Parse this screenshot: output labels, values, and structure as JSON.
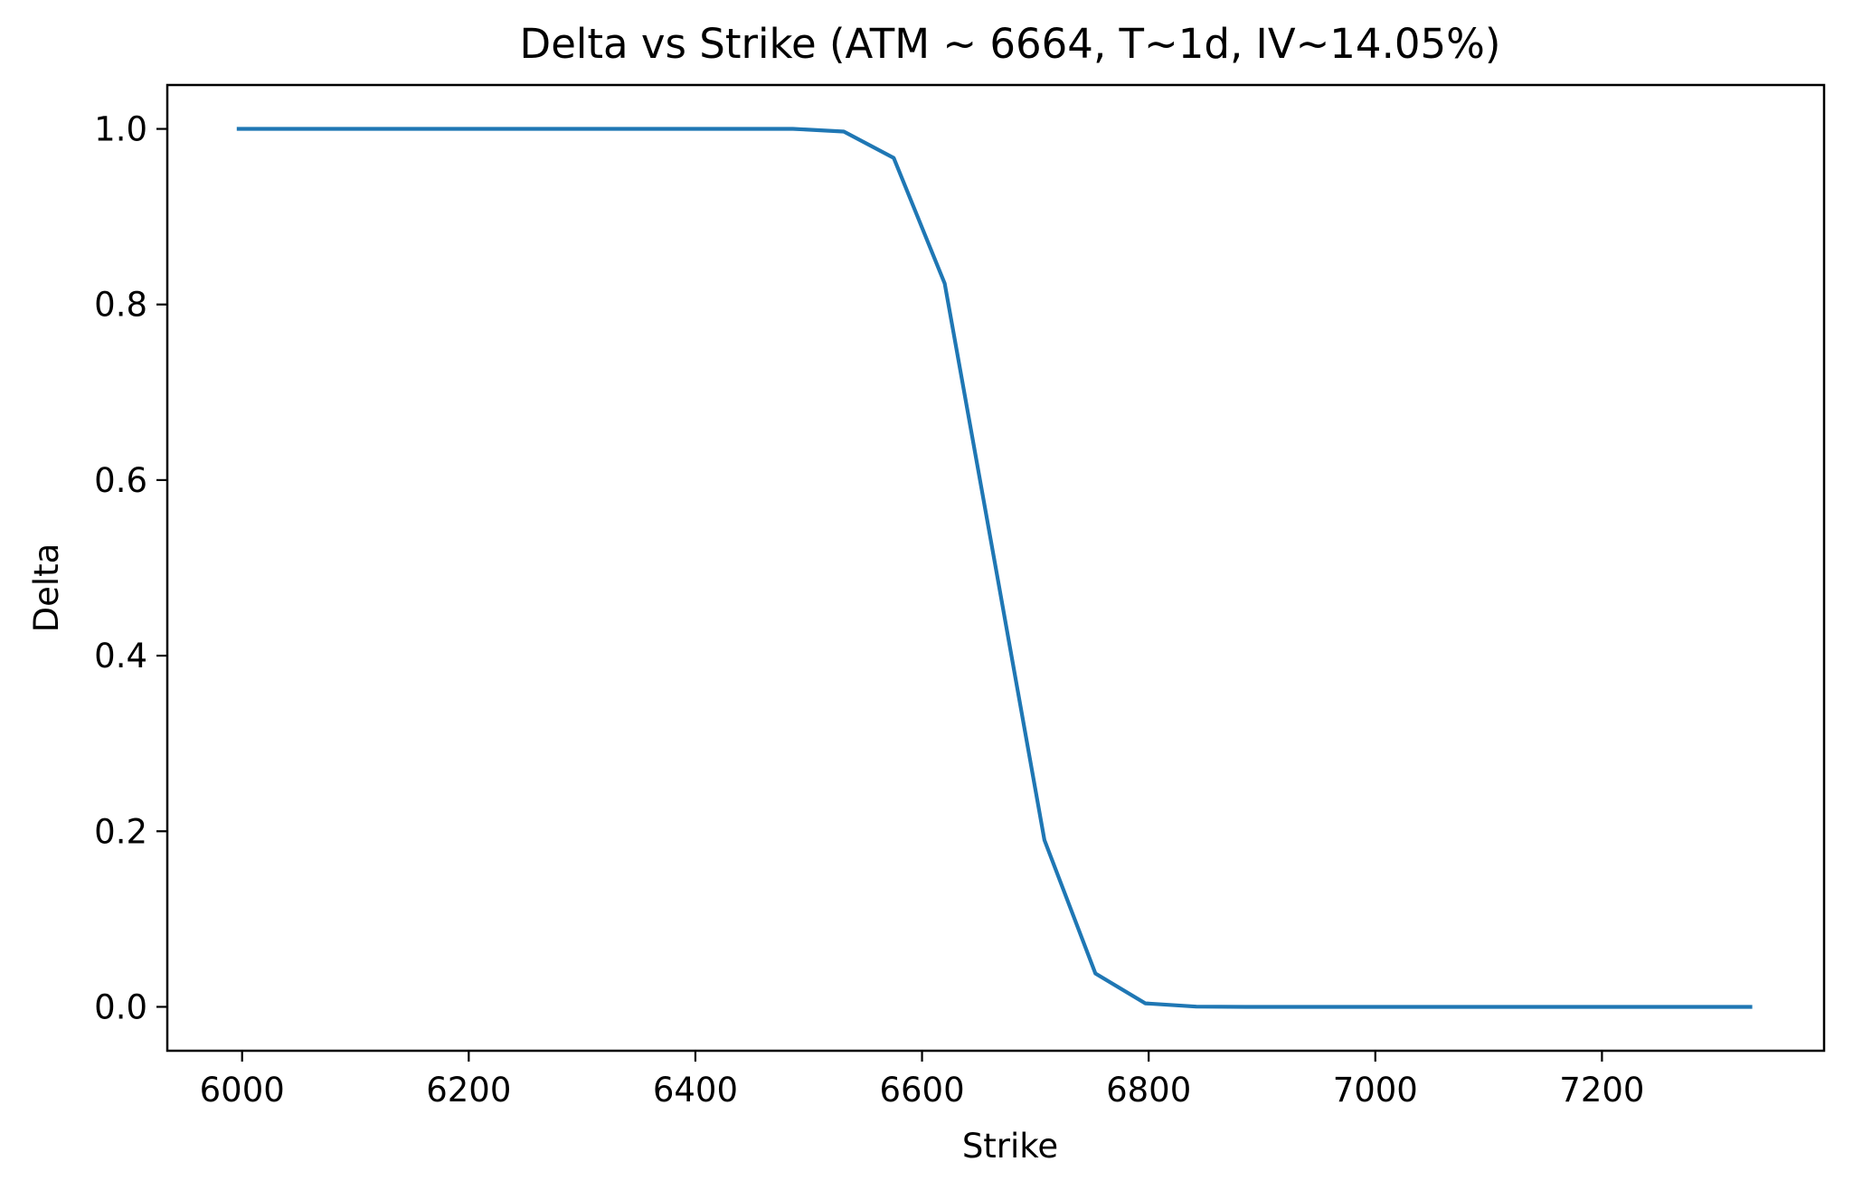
{
  "chart_data": {
    "type": "line",
    "title": "Delta vs Strike (ATM ~ 6664, T~1d, IV~14.05%)",
    "xlabel": "Strike",
    "ylabel": "Delta",
    "xlim": [
      5934,
      7396
    ],
    "ylim": [
      -0.05,
      1.05
    ],
    "xticks": [
      6000,
      6200,
      6400,
      6600,
      6800,
      7000,
      7200
    ],
    "yticks": [
      0.0,
      0.2,
      0.4,
      0.6,
      0.8,
      1.0
    ],
    "xtick_labels": [
      "6000",
      "6200",
      "6400",
      "6600",
      "6800",
      "7000",
      "7200"
    ],
    "ytick_labels": [
      "0.0",
      "0.2",
      "0.4",
      "0.6",
      "0.8",
      "1.0"
    ],
    "grid": false,
    "legend": null,
    "series": [
      {
        "color": "#1f77b4",
        "x": [
          5997,
          6042,
          6086,
          6131,
          6175,
          6220,
          6264,
          6308,
          6353,
          6397,
          6442,
          6486,
          6531,
          6575,
          6620,
          6664,
          6708,
          6753,
          6797,
          6842,
          6886,
          6931,
          6975,
          7020,
          7064,
          7108,
          7153,
          7197,
          7242,
          7286,
          7331
        ],
        "y": [
          1.0,
          1.0,
          1.0,
          1.0,
          1.0,
          1.0,
          1.0,
          1.0,
          1.0,
          1.0,
          1.0,
          1.0,
          0.997,
          0.967,
          0.824,
          0.508,
          0.19,
          0.038,
          0.004,
          0.0003,
          0.0,
          0.0,
          0.0,
          0.0,
          0.0,
          0.0,
          0.0,
          0.0,
          0.0,
          0.0,
          0.0
        ]
      }
    ]
  }
}
